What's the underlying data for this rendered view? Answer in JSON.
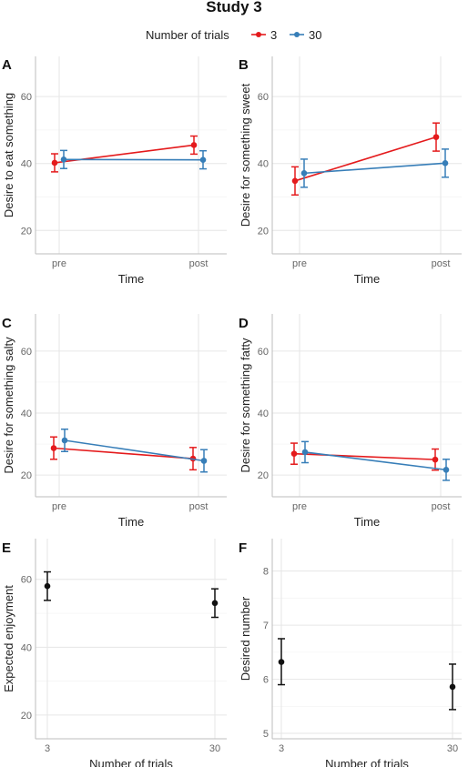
{
  "figure": {
    "title": "Study 3",
    "legend": {
      "title": "Number of trials",
      "entries": [
        {
          "label": "3",
          "color": "#e41a1c"
        },
        {
          "label": "30",
          "color": "#377eb8"
        }
      ]
    }
  },
  "chart_data": [
    {
      "panel": "A",
      "type": "line",
      "xlabel": "Time",
      "ylabel": "Desire to eat something",
      "categories": [
        "pre",
        "post"
      ],
      "ylim": [
        13,
        72
      ],
      "yticks": [
        20,
        40,
        60
      ],
      "series": [
        {
          "name": "3",
          "color": "#e41a1c",
          "values": [
            40.2,
            45.5
          ],
          "lower": [
            37.5,
            42.8
          ],
          "upper": [
            42.9,
            48.2
          ]
        },
        {
          "name": "30",
          "color": "#377eb8",
          "values": [
            41.2,
            41.1
          ],
          "lower": [
            38.5,
            38.4
          ],
          "upper": [
            43.9,
            43.8
          ]
        }
      ]
    },
    {
      "panel": "B",
      "type": "line",
      "xlabel": "Time",
      "ylabel": "Desire for something sweet",
      "categories": [
        "pre",
        "post"
      ],
      "ylim": [
        13,
        72
      ],
      "yticks": [
        20,
        40,
        60
      ],
      "series": [
        {
          "name": "3",
          "color": "#e41a1c",
          "values": [
            34.8,
            47.9
          ],
          "lower": [
            30.6,
            43.7
          ],
          "upper": [
            39.0,
            52.1
          ]
        },
        {
          "name": "30",
          "color": "#377eb8",
          "values": [
            37.1,
            40.1
          ],
          "lower": [
            32.9,
            35.9
          ],
          "upper": [
            41.3,
            44.3
          ]
        }
      ]
    },
    {
      "panel": "C",
      "type": "line",
      "xlabel": "Time",
      "ylabel": "Desire for something salty",
      "categories": [
        "pre",
        "post"
      ],
      "ylim": [
        13,
        72
      ],
      "yticks": [
        20,
        40,
        60
      ],
      "series": [
        {
          "name": "3",
          "color": "#e41a1c",
          "values": [
            28.7,
            25.3
          ],
          "lower": [
            25.1,
            21.7
          ],
          "upper": [
            32.3,
            28.9
          ]
        },
        {
          "name": "30",
          "color": "#377eb8",
          "values": [
            31.2,
            24.6
          ],
          "lower": [
            27.6,
            21.0
          ],
          "upper": [
            34.8,
            28.2
          ]
        }
      ]
    },
    {
      "panel": "D",
      "type": "line",
      "xlabel": "Time",
      "ylabel": "Desire for something fatty",
      "categories": [
        "pre",
        "post"
      ],
      "ylim": [
        13,
        72
      ],
      "yticks": [
        20,
        40,
        60
      ],
      "series": [
        {
          "name": "3",
          "color": "#e41a1c",
          "values": [
            26.9,
            25.0
          ],
          "lower": [
            23.5,
            21.6
          ],
          "upper": [
            30.3,
            28.4
          ]
        },
        {
          "name": "30",
          "color": "#377eb8",
          "values": [
            27.4,
            21.7
          ],
          "lower": [
            24.0,
            18.3
          ],
          "upper": [
            30.8,
            25.1
          ]
        }
      ]
    },
    {
      "panel": "E",
      "type": "scatter",
      "xlabel": "Number of trials",
      "ylabel": "Expected enjoyment",
      "categories": [
        "3",
        "30"
      ],
      "ylim": [
        13,
        72
      ],
      "yticks": [
        20,
        40,
        60
      ],
      "series": [
        {
          "color": "#111111",
          "values": [
            58.0,
            53.0
          ],
          "lower": [
            53.8,
            48.8
          ],
          "upper": [
            62.2,
            57.2
          ]
        }
      ]
    },
    {
      "panel": "F",
      "type": "scatter",
      "xlabel": "Number of trials",
      "ylabel": "Desired number",
      "categories": [
        "3",
        "30"
      ],
      "ylim": [
        4.9,
        8.6
      ],
      "yticks": [
        5,
        6,
        7,
        8
      ],
      "series": [
        {
          "color": "#111111",
          "values": [
            6.32,
            5.86
          ],
          "lower": [
            5.9,
            5.44
          ],
          "upper": [
            6.75,
            6.28
          ]
        }
      ]
    }
  ]
}
